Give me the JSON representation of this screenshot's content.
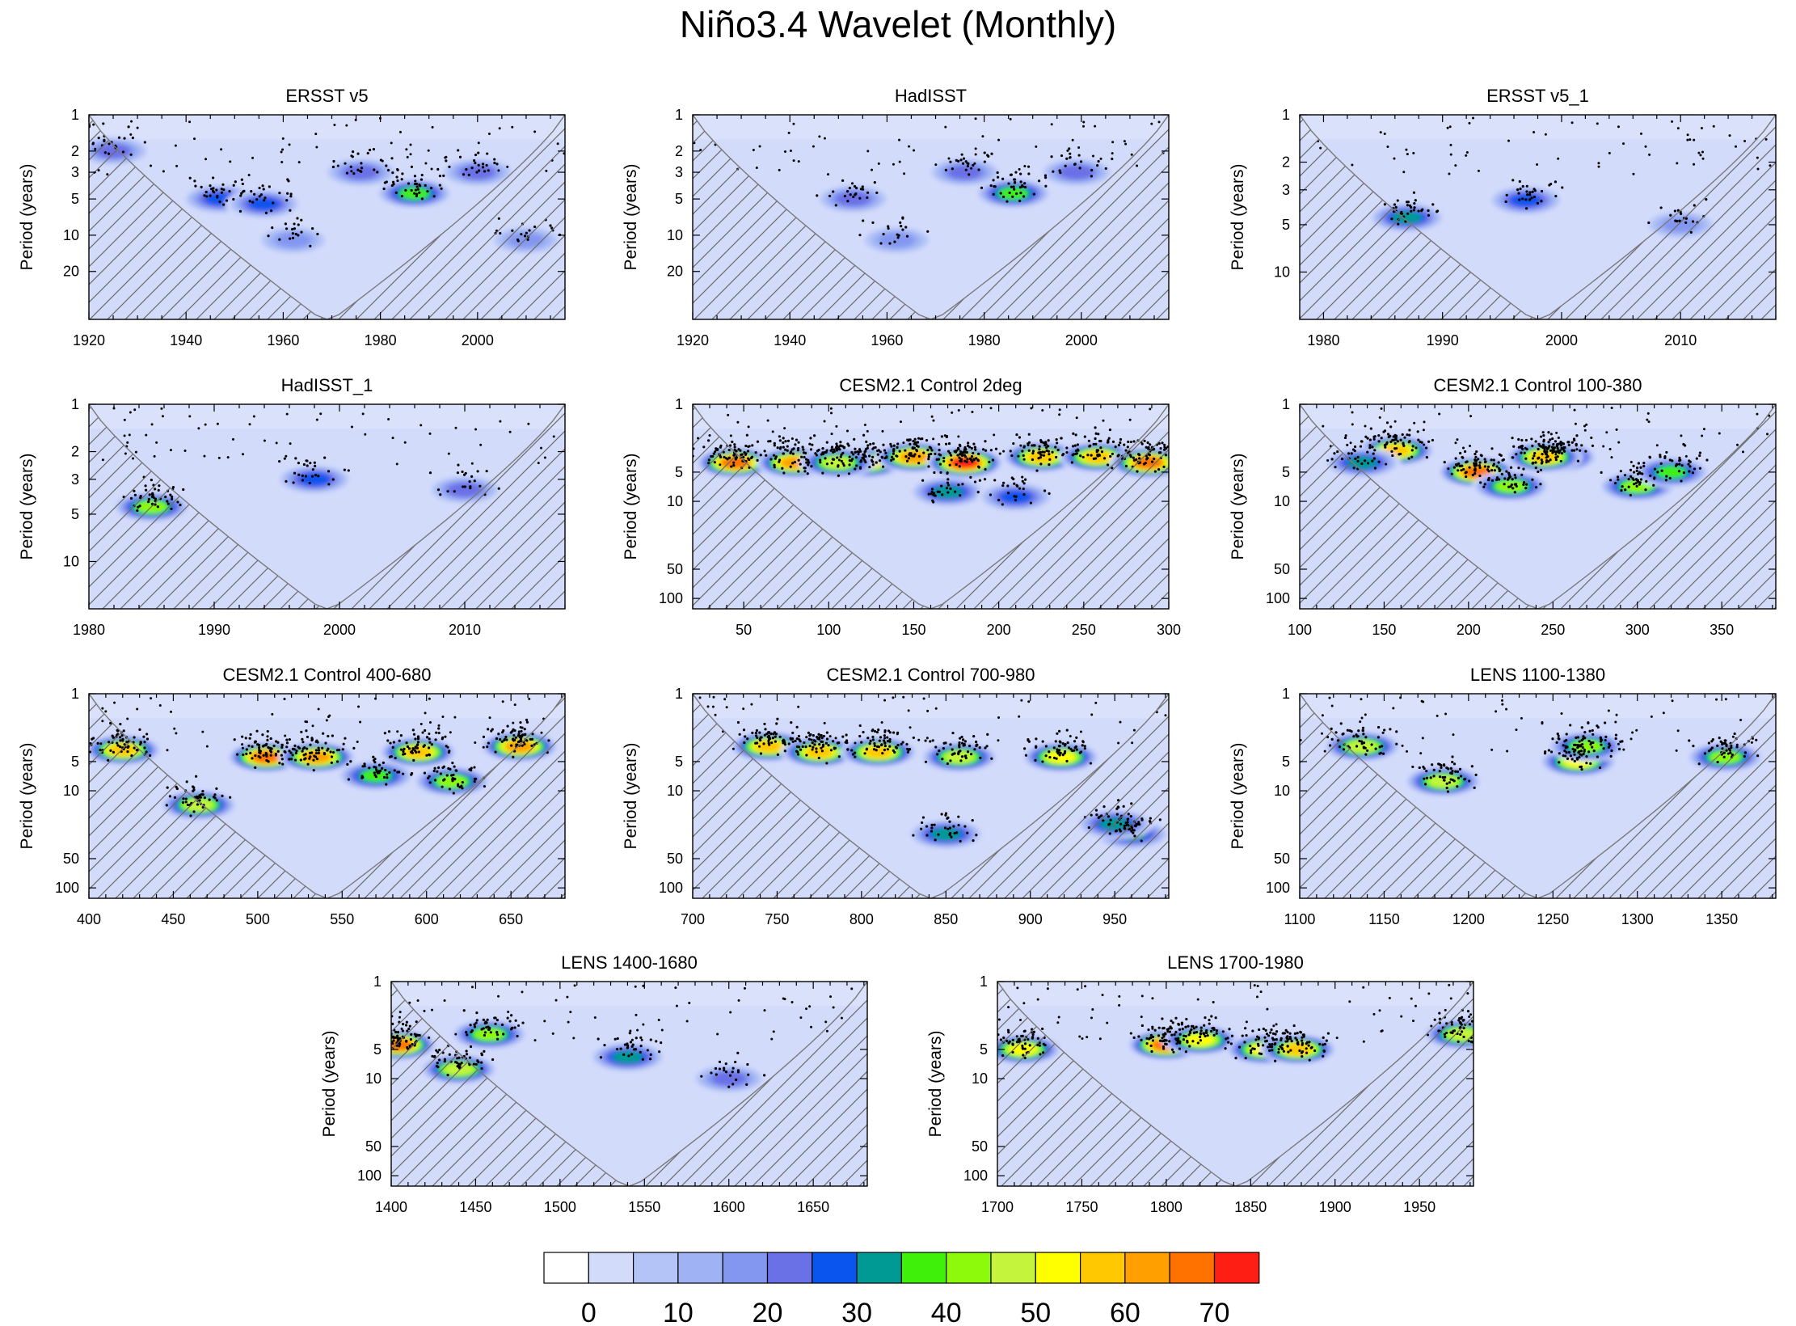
{
  "figure": {
    "title": "Niño3.4 Wavelet (Monthly)",
    "ylabel": "Period (years)"
  },
  "colors": {
    "background_field": "#d3dbfb",
    "coi_hatch": "#5a5a5a",
    "coi_curve": "#7a7a7a",
    "significance_dot": "#000000"
  },
  "colorbar": {
    "levels": [
      "#ffffff",
      "#d3dbfb",
      "#b4c4f7",
      "#9fb2f4",
      "#8497f0",
      "#6a70e6",
      "#0a55ee",
      "#009a94",
      "#3ff00a",
      "#8cfa0a",
      "#c4f53c",
      "#ffff00",
      "#ffc800",
      "#ffa000",
      "#ff7200",
      "#ff1e14"
    ],
    "tick_labels": [
      "0",
      "10",
      "20",
      "30",
      "40",
      "50",
      "60",
      "70"
    ]
  },
  "chart_data": [
    {
      "type": "heatmap",
      "name": "panel-ersst-v5",
      "title": "ERSST v5",
      "xlim": [
        1920,
        2018
      ],
      "xticks": [
        "1920",
        "1940",
        "1960",
        "1980",
        "2000"
      ],
      "xtick_values": [
        1920,
        1940,
        1960,
        1980,
        2000
      ],
      "ylim": [
        1,
        50
      ],
      "yticks": [
        "1",
        "2",
        "3",
        "5",
        "10",
        "20"
      ],
      "ytick_values": [
        1,
        2,
        3,
        5,
        10,
        20
      ],
      "ylabel": "Period (years)",
      "power_peaks": [
        [
          1947,
          5,
          28
        ],
        [
          1956,
          5.5,
          25
        ],
        [
          1987,
          4.5,
          38
        ],
        [
          1962,
          11,
          18
        ],
        [
          2010,
          11,
          18
        ],
        [
          1976,
          3,
          22
        ],
        [
          2000,
          3,
          22
        ],
        [
          1925,
          2,
          22
        ]
      ]
    },
    {
      "type": "heatmap",
      "name": "panel-hadisst",
      "title": "HadISST",
      "xlim": [
        1920,
        2018
      ],
      "xticks": [
        "1920",
        "1940",
        "1960",
        "1980",
        "2000"
      ],
      "xtick_values": [
        1920,
        1940,
        1960,
        1980,
        2000
      ],
      "ylim": [
        1,
        50
      ],
      "yticks": [
        "1",
        "2",
        "3",
        "5",
        "10",
        "20"
      ],
      "ytick_values": [
        1,
        2,
        3,
        5,
        10,
        20
      ],
      "ylabel": "Period (years)",
      "power_peaks": [
        [
          1953,
          5,
          22
        ],
        [
          1986,
          4.5,
          38
        ],
        [
          1976,
          3,
          20
        ],
        [
          1999,
          3,
          20
        ],
        [
          1962,
          11,
          18
        ]
      ]
    },
    {
      "type": "heatmap",
      "name": "panel-ersst-v5-1",
      "title": "ERSST v5_1",
      "xlim": [
        1978,
        2018
      ],
      "xticks": [
        "1980",
        "1990",
        "2000",
        "2010"
      ],
      "xtick_values": [
        1980,
        1990,
        2000,
        2010
      ],
      "ylim": [
        1,
        20
      ],
      "yticks": [
        "1",
        "2",
        "3",
        "5",
        "10"
      ],
      "ytick_values": [
        1,
        2,
        3,
        5,
        10
      ],
      "ylabel": "Period (years)",
      "power_peaks": [
        [
          1987,
          4.5,
          32
        ],
        [
          1997,
          3.5,
          28
        ],
        [
          2010,
          5,
          18
        ]
      ]
    },
    {
      "type": "heatmap",
      "name": "panel-hadisst-1",
      "title": "HadISST_1",
      "xlim": [
        1980,
        2018
      ],
      "xticks": [
        "1980",
        "1990",
        "2000",
        "2010"
      ],
      "xtick_values": [
        1980,
        1990,
        2000,
        2010
      ],
      "ylim": [
        1,
        20
      ],
      "yticks": [
        "1",
        "2",
        "3",
        "5",
        "10"
      ],
      "ytick_values": [
        1,
        2,
        3,
        5,
        10
      ],
      "ylabel": "Period (years)",
      "power_peaks": [
        [
          1985,
          4.5,
          42
        ],
        [
          1998,
          3,
          25
        ],
        [
          2010,
          3.5,
          20
        ]
      ]
    },
    {
      "type": "heatmap",
      "name": "panel-cesm-2deg",
      "title": "CESM2.1 Control 2deg",
      "xlim": [
        20,
        300
      ],
      "xticks": [
        "50",
        "100",
        "150",
        "200",
        "250",
        "300"
      ],
      "xtick_values": [
        50,
        100,
        150,
        200,
        250,
        300
      ],
      "ylim": [
        1,
        128
      ],
      "yticks": [
        "1",
        "5",
        "10",
        "50",
        "100"
      ],
      "ytick_values": [
        1,
        5,
        10,
        50,
        100
      ],
      "ylabel": "Period (years)",
      "power_peaks": [
        [
          45,
          4,
          65
        ],
        [
          80,
          4,
          60
        ],
        [
          122,
          4,
          55
        ],
        [
          150,
          3.5,
          60
        ],
        [
          180,
          4,
          70
        ],
        [
          225,
          3.5,
          55
        ],
        [
          258,
          3.5,
          55
        ],
        [
          288,
          4,
          65
        ],
        [
          105,
          4,
          45
        ],
        [
          170,
          8,
          30
        ],
        [
          210,
          9,
          25
        ]
      ]
    },
    {
      "type": "heatmap",
      "name": "panel-cesm-100-380",
      "title": "CESM2.1 Control 100-380",
      "xlim": [
        100,
        382
      ],
      "xticks": [
        "100",
        "150",
        "200",
        "250",
        "300",
        "350"
      ],
      "xtick_values": [
        100,
        150,
        200,
        250,
        300,
        350
      ],
      "ylim": [
        1,
        128
      ],
      "yticks": [
        "1",
        "5",
        "10",
        "50",
        "100"
      ],
      "ytick_values": [
        1,
        5,
        10,
        50,
        100
      ],
      "ylabel": "Period (years)",
      "power_peaks": [
        [
          157,
          3,
          55
        ],
        [
          205,
          5,
          65
        ],
        [
          253,
          3.5,
          55
        ],
        [
          245,
          3.5,
          55
        ],
        [
          225,
          7,
          42
        ],
        [
          300,
          7,
          40
        ],
        [
          320,
          5,
          38
        ],
        [
          137,
          4,
          32
        ]
      ]
    },
    {
      "type": "heatmap",
      "name": "panel-cesm-400-680",
      "title": "CESM2.1 Control 400-680",
      "xlim": [
        400,
        682
      ],
      "xticks": [
        "400",
        "450",
        "500",
        "550",
        "600",
        "650"
      ],
      "xtick_values": [
        400,
        450,
        500,
        550,
        600,
        650
      ],
      "ylim": [
        1,
        128
      ],
      "yticks": [
        "1",
        "5",
        "10",
        "50",
        "100"
      ],
      "ytick_values": [
        1,
        5,
        10,
        50,
        100
      ],
      "ylabel": "Period (years)",
      "power_peaks": [
        [
          420,
          3.8,
          55
        ],
        [
          505,
          4.5,
          65
        ],
        [
          535,
          4.5,
          60
        ],
        [
          595,
          4,
          55
        ],
        [
          655,
          3.5,
          60
        ],
        [
          465,
          14,
          45
        ],
        [
          615,
          8,
          42
        ],
        [
          570,
          7,
          38
        ]
      ]
    },
    {
      "type": "heatmap",
      "name": "panel-cesm-700-980",
      "title": "CESM2.1 Control 700-980",
      "xlim": [
        700,
        982
      ],
      "xticks": [
        "700",
        "750",
        "800",
        "850",
        "900",
        "950"
      ],
      "xtick_values": [
        700,
        750,
        800,
        850,
        900,
        950
      ],
      "ylim": [
        1,
        128
      ],
      "yticks": [
        "1",
        "5",
        "10",
        "50",
        "100"
      ],
      "ytick_values": [
        1,
        5,
        10,
        50,
        100
      ],
      "ylabel": "Period (years)",
      "power_peaks": [
        [
          745,
          3.5,
          55
        ],
        [
          775,
          4,
          55
        ],
        [
          810,
          4,
          55
        ],
        [
          858,
          4.5,
          48
        ],
        [
          918,
          4.5,
          52
        ],
        [
          850,
          28,
          33
        ],
        [
          960,
          28,
          33
        ],
        [
          950,
          22,
          30
        ]
      ]
    },
    {
      "type": "heatmap",
      "name": "panel-lens-1100-1380",
      "title": "LENS 1100-1380",
      "xlim": [
        1100,
        1382
      ],
      "xticks": [
        "1100",
        "1150",
        "1200",
        "1250",
        "1300",
        "1350"
      ],
      "xtick_values": [
        1100,
        1150,
        1200,
        1250,
        1300,
        1350
      ],
      "ylim": [
        1,
        128
      ],
      "yticks": [
        "1",
        "5",
        "10",
        "50",
        "100"
      ],
      "ytick_values": [
        1,
        5,
        10,
        50,
        100
      ],
      "ylabel": "Period (years)",
      "power_peaks": [
        [
          1137,
          3.5,
          45
        ],
        [
          1185,
          8,
          48
        ],
        [
          1265,
          5,
          50
        ],
        [
          1270,
          3.5,
          42
        ],
        [
          1352,
          4.5,
          42
        ]
      ]
    },
    {
      "type": "heatmap",
      "name": "panel-lens-1400-1680",
      "title": "LENS 1400-1680",
      "xlim": [
        1400,
        1682
      ],
      "xticks": [
        "1400",
        "1450",
        "1500",
        "1550",
        "1600",
        "1650"
      ],
      "xtick_values": [
        1400,
        1450,
        1500,
        1550,
        1600,
        1650
      ],
      "ylim": [
        1,
        128
      ],
      "yticks": [
        "1",
        "5",
        "10",
        "50",
        "100"
      ],
      "ytick_values": [
        1,
        5,
        10,
        50,
        100
      ],
      "ylabel": "Period (years)",
      "power_peaks": [
        [
          1404,
          4.5,
          65
        ],
        [
          1440,
          8,
          45
        ],
        [
          1458,
          3.5,
          42
        ],
        [
          1540,
          6,
          30
        ],
        [
          1600,
          10,
          22
        ]
      ]
    },
    {
      "type": "heatmap",
      "name": "panel-lens-1700-1980",
      "title": "LENS 1700-1980",
      "xlim": [
        1700,
        1982
      ],
      "xticks": [
        "1700",
        "1750",
        "1800",
        "1850",
        "1900",
        "1950"
      ],
      "xtick_values": [
        1700,
        1750,
        1800,
        1850,
        1900,
        1950
      ],
      "ylim": [
        1,
        128
      ],
      "yticks": [
        "1",
        "5",
        "10",
        "50",
        "100"
      ],
      "ytick_values": [
        1,
        5,
        10,
        50,
        100
      ],
      "ylabel": "Period (years)",
      "power_peaks": [
        [
          1715,
          5,
          50
        ],
        [
          1800,
          4.5,
          65
        ],
        [
          1820,
          4,
          50
        ],
        [
          1858,
          5,
          52
        ],
        [
          1878,
          5,
          55
        ],
        [
          1975,
          3.5,
          48
        ]
      ]
    }
  ]
}
